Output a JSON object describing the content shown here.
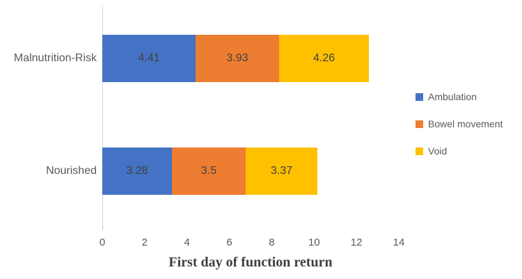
{
  "chart_data": {
    "type": "bar",
    "variant": "horizontal-stacked",
    "categories": [
      "Malnutrition-Risk",
      "Nourished"
    ],
    "series": [
      {
        "name": "Ambulation",
        "color": "#4472C4",
        "values": [
          4.41,
          3.28
        ]
      },
      {
        "name": "Bowel movement",
        "color": "#ED7D31",
        "values": [
          3.93,
          3.5
        ]
      },
      {
        "name": "Void",
        "color": "#FFC000",
        "values": [
          4.26,
          3.37
        ]
      }
    ],
    "value_labels": [
      [
        "4.41",
        "3.28"
      ],
      [
        "3.93",
        "3.5"
      ],
      [
        "4.26",
        "3.37"
      ]
    ],
    "title": "",
    "xlabel": "First day of function return",
    "ylabel": "",
    "x_ticks": [
      0,
      2,
      4,
      6,
      8,
      10,
      12,
      14
    ],
    "xlim": [
      0,
      14
    ],
    "grid": "off",
    "legend_position": "right",
    "data_label_color": "#404040",
    "axis_text_color": "#595959",
    "axis_line_color": "#d9d9d9"
  }
}
